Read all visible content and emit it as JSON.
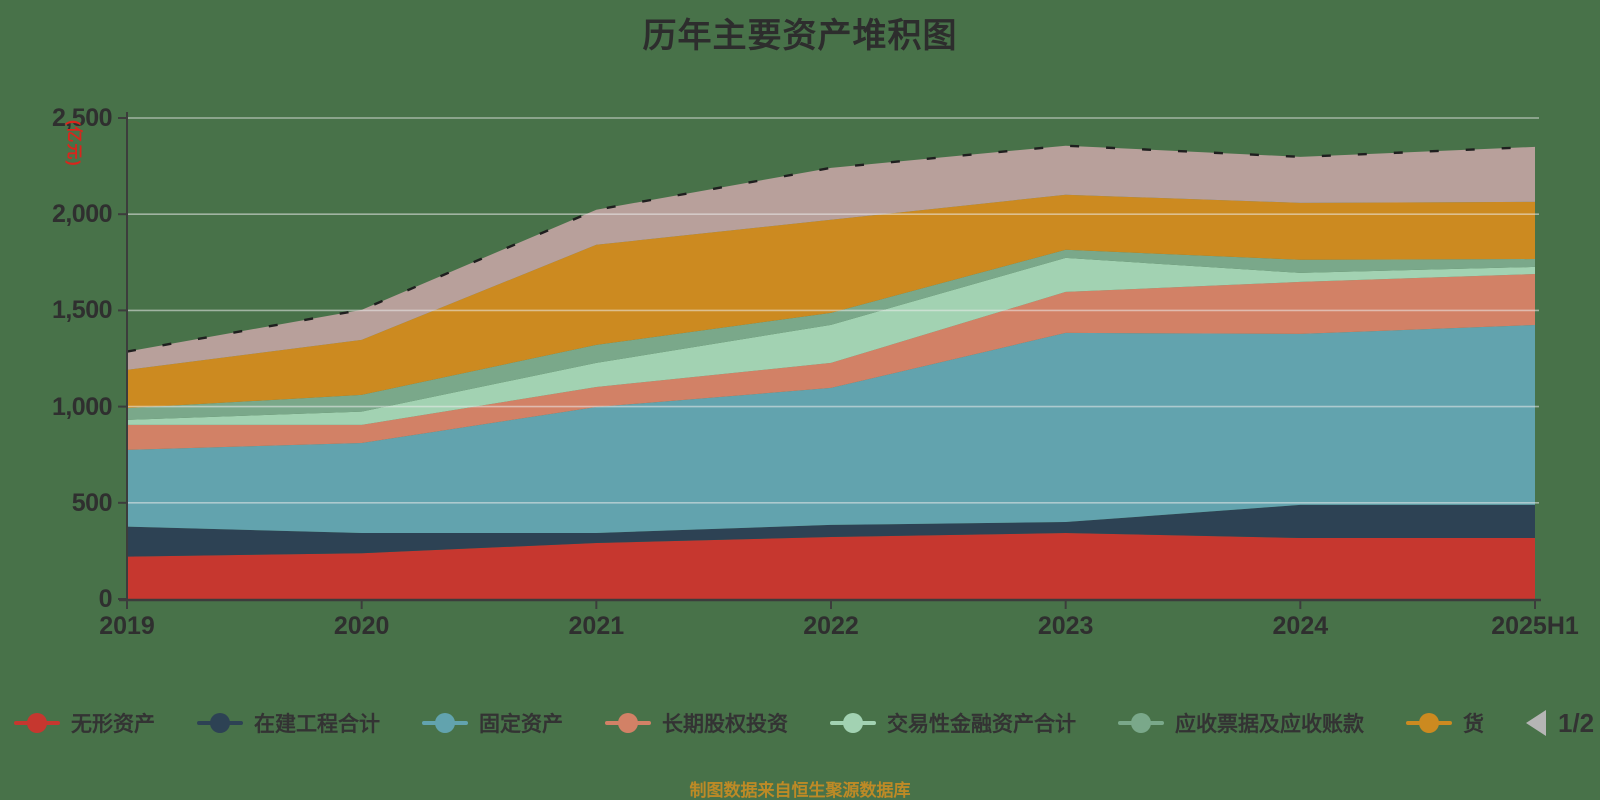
{
  "title": "历年主要资产堆积图",
  "source_note": "制图数据来自恒生聚源数据库",
  "y_axis": {
    "unit": "(亿元)",
    "unit_color": "#d9251c",
    "tick_labels": [
      "0",
      "500",
      "1,000",
      "1,500",
      "2,000",
      "2,500"
    ],
    "tick_values": [
      0,
      500,
      1000,
      1500,
      2000,
      2500
    ]
  },
  "x_axis": {
    "categories": [
      "2019",
      "2020",
      "2021",
      "2022",
      "2023",
      "2024",
      "2025H1"
    ]
  },
  "legend": {
    "items": [
      {
        "label": "无形资产",
        "color": "#c6372f"
      },
      {
        "label": "在建工程合计",
        "color": "#2d4254"
      },
      {
        "label": "固定资产",
        "color": "#62a3ae"
      },
      {
        "label": "长期股权投资",
        "color": "#d28166"
      },
      {
        "label": "交易性金融资产合计",
        "color": "#a2d2b2"
      },
      {
        "label": "应收票据及应收账款",
        "color": "#7aa88a"
      },
      {
        "label": "货",
        "color": "#cc8a20"
      }
    ],
    "pager_label": "1/2"
  },
  "colors": {
    "background": "#487249",
    "axis": "#3c3c3c",
    "gridline": "rgba(235,235,235,0.55)",
    "tick_text": "#2f2f2f",
    "top_edge_line": "#1f1f1f",
    "pager_prev_arrow": "#b5b5b5",
    "pager_next_arrow": "#35485c"
  },
  "chart_data": {
    "type": "area",
    "stacked": true,
    "title": "历年主要资产堆积图",
    "ylabel": "(亿元)",
    "ylim": [
      0,
      2500
    ],
    "grid": true,
    "legend_position": "bottom",
    "x": [
      "2019",
      "2020",
      "2021",
      "2022",
      "2023",
      "2024",
      "2025H1"
    ],
    "series": [
      {
        "name": "无形资产",
        "color": "#c6372f",
        "values": [
          220,
          238,
          291,
          322,
          343,
          317,
          317
        ]
      },
      {
        "name": "在建工程合计",
        "color": "#2d4254",
        "values": [
          156,
          105,
          52,
          63,
          57,
          172,
          172
        ]
      },
      {
        "name": "固定资产",
        "color": "#62a3ae",
        "values": [
          399,
          468,
          655,
          712,
          983,
          889,
          935
        ]
      },
      {
        "name": "长期股权投资",
        "color": "#d28166",
        "values": [
          130,
          94,
          104,
          130,
          213,
          270,
          265
        ]
      },
      {
        "name": "交易性金融资产合计",
        "color": "#a2d2b2",
        "values": [
          26,
          69,
          125,
          198,
          177,
          47,
          37
        ]
      },
      {
        "name": "应收票据及应收账款",
        "color": "#7aa88a",
        "values": [
          61,
          87,
          94,
          62,
          42,
          68,
          41
        ]
      },
      {
        "name": "货",
        "color": "#cc8a20",
        "values": [
          199,
          286,
          520,
          484,
          286,
          296,
          297
        ]
      },
      {
        "name": "",
        "color": "#b8a09b",
        "values": [
          95,
          156,
          182,
          270,
          255,
          239,
          286
        ]
      }
    ]
  }
}
